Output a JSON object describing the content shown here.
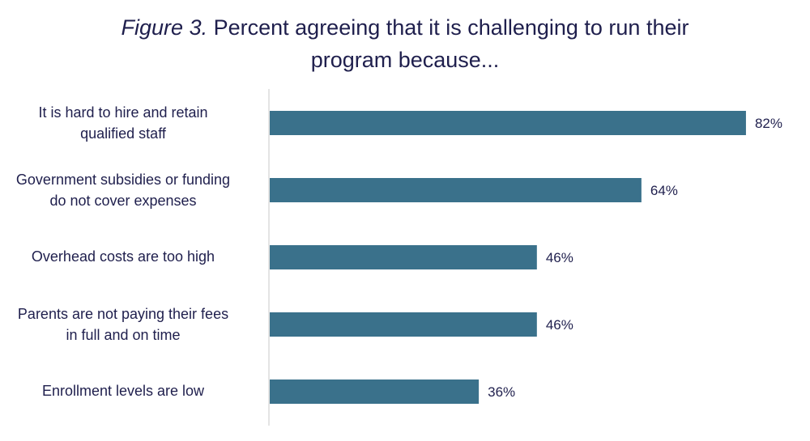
{
  "chart_data": {
    "type": "bar",
    "orientation": "horizontal",
    "title_prefix": "Figure 3.",
    "title_line1": "Percent agreeing that it is challenging to run their",
    "title_line2": "program because...",
    "categories": [
      [
        "It is hard to hire and retain",
        "qualified staff"
      ],
      [
        "Government subsidies or funding",
        "do not cover expenses"
      ],
      [
        "Overhead costs are too high"
      ],
      [
        "Parents are not paying their fees",
        "in full and on time"
      ],
      [
        "Enrollment levels are low"
      ]
    ],
    "values": [
      82,
      64,
      46,
      46,
      36
    ],
    "value_labels": [
      "82%",
      "64%",
      "46%",
      "46%",
      "36%"
    ],
    "xlim": [
      0,
      100
    ],
    "unit": "%",
    "bar_color": "#3a718b",
    "axis_color": "#c8c8c8",
    "text_color": "#1f1f4d",
    "grid": false,
    "legend": "none"
  }
}
